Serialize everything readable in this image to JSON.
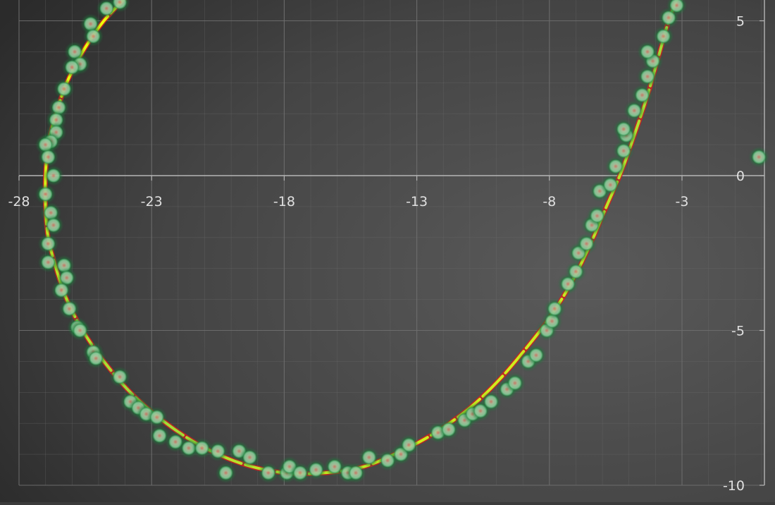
{
  "chart_data": {
    "type": "scatter",
    "title": "",
    "xlabel": "",
    "ylabel": "",
    "xlim": [
      -28,
      0
    ],
    "ylim": [
      -10,
      5.5
    ],
    "grid": true,
    "legend": "none",
    "x_ticks": [
      -28,
      -23,
      -18,
      -13,
      -8,
      -3
    ],
    "x_tick_labels": [
      "-28",
      "-23",
      "-18",
      "-13",
      "-8",
      "-3"
    ],
    "y_ticks": [
      5,
      0,
      -5,
      -10
    ],
    "y_tick_labels": [
      "5",
      "0",
      "-5",
      "-10"
    ],
    "colors": {
      "background": "#3b3b3b",
      "marker_fill": "#8fd1a0",
      "marker_edge": "#1f7a3a",
      "marker_center": "#e07b6a",
      "fit_line_under": "#d22020",
      "fit_line_gradient": [
        "#ffff00",
        "#9cd83a",
        "#ffff00"
      ],
      "grid": "#6e6e6e",
      "axis": "#b5b5b5",
      "tick_label": "#e0e0e0"
    },
    "series": [
      {
        "kind": "points",
        "points": [
          [
            -24.2,
            5.6
          ],
          [
            -24.7,
            5.4
          ],
          [
            -25.3,
            4.9
          ],
          [
            -25.2,
            4.5
          ],
          [
            -25.9,
            4.0
          ],
          [
            -25.7,
            3.6
          ],
          [
            -26.0,
            3.5
          ],
          [
            -26.3,
            2.8
          ],
          [
            -26.5,
            2.2
          ],
          [
            -26.6,
            1.8
          ],
          [
            -26.6,
            1.4
          ],
          [
            -26.8,
            1.1
          ],
          [
            -27.0,
            1.0
          ],
          [
            -26.9,
            0.6
          ],
          [
            -26.7,
            0.0
          ],
          [
            -27.0,
            -0.6
          ],
          [
            -26.8,
            -1.2
          ],
          [
            -26.7,
            -1.6
          ],
          [
            -26.9,
            -2.2
          ],
          [
            -26.9,
            -2.8
          ],
          [
            -26.3,
            -2.9
          ],
          [
            -26.2,
            -3.3
          ],
          [
            -26.4,
            -3.7
          ],
          [
            -26.1,
            -4.3
          ],
          [
            -25.8,
            -4.9
          ],
          [
            -25.7,
            -5.0
          ],
          [
            -25.2,
            -5.7
          ],
          [
            -25.1,
            -5.9
          ],
          [
            -24.2,
            -6.5
          ],
          [
            -23.8,
            -7.3
          ],
          [
            -23.5,
            -7.5
          ],
          [
            -23.2,
            -7.7
          ],
          [
            -22.8,
            -7.8
          ],
          [
            -22.7,
            -8.4
          ],
          [
            -22.1,
            -8.6
          ],
          [
            -21.6,
            -8.8
          ],
          [
            -21.1,
            -8.8
          ],
          [
            -20.5,
            -8.9
          ],
          [
            -19.7,
            -8.9
          ],
          [
            -19.3,
            -9.1
          ],
          [
            -20.2,
            -9.6
          ],
          [
            -18.6,
            -9.6
          ],
          [
            -17.9,
            -9.6
          ],
          [
            -17.8,
            -9.4
          ],
          [
            -17.4,
            -9.6
          ],
          [
            -16.8,
            -9.5
          ],
          [
            -16.1,
            -9.4
          ],
          [
            -15.6,
            -9.6
          ],
          [
            -15.3,
            -9.6
          ],
          [
            -14.8,
            -9.1
          ],
          [
            -14.1,
            -9.2
          ],
          [
            -13.6,
            -9.0
          ],
          [
            -13.3,
            -8.7
          ],
          [
            -12.2,
            -8.3
          ],
          [
            -11.8,
            -8.2
          ],
          [
            -11.2,
            -7.9
          ],
          [
            -10.9,
            -7.7
          ],
          [
            -10.6,
            -7.6
          ],
          [
            -10.2,
            -7.3
          ],
          [
            -9.6,
            -6.9
          ],
          [
            -9.3,
            -6.7
          ],
          [
            -8.8,
            -6.0
          ],
          [
            -8.5,
            -5.8
          ],
          [
            -8.1,
            -5.0
          ],
          [
            -7.9,
            -4.7
          ],
          [
            -7.8,
            -4.3
          ],
          [
            -7.3,
            -3.5
          ],
          [
            -7.0,
            -3.1
          ],
          [
            -6.9,
            -2.5
          ],
          [
            -6.6,
            -2.2
          ],
          [
            -6.4,
            -1.6
          ],
          [
            -6.2,
            -1.3
          ],
          [
            -6.1,
            -0.5
          ],
          [
            -5.7,
            -0.3
          ],
          [
            -5.5,
            0.3
          ],
          [
            -5.2,
            0.8
          ],
          [
            -5.1,
            1.3
          ],
          [
            -5.2,
            1.5
          ],
          [
            -4.8,
            2.1
          ],
          [
            -4.5,
            2.6
          ],
          [
            -4.3,
            3.2
          ],
          [
            -4.1,
            3.7
          ],
          [
            -4.3,
            4.0
          ],
          [
            -3.7,
            4.5
          ],
          [
            -3.5,
            5.1
          ],
          [
            -3.2,
            5.5
          ],
          [
            -0.1,
            0.6
          ]
        ]
      },
      {
        "kind": "fit-curve",
        "points": [
          [
            -23.8,
            5.9
          ],
          [
            -24.8,
            5.0
          ],
          [
            -25.6,
            4.0
          ],
          [
            -26.2,
            3.0
          ],
          [
            -26.6,
            2.0
          ],
          [
            -26.9,
            1.0
          ],
          [
            -27.0,
            0.0
          ],
          [
            -27.0,
            -1.0
          ],
          [
            -26.9,
            -2.0
          ],
          [
            -26.6,
            -3.0
          ],
          [
            -26.2,
            -4.0
          ],
          [
            -25.6,
            -5.0
          ],
          [
            -24.8,
            -6.0
          ],
          [
            -23.8,
            -7.0
          ],
          [
            -22.6,
            -7.9
          ],
          [
            -21.2,
            -8.7
          ],
          [
            -19.6,
            -9.3
          ],
          [
            -18.0,
            -9.6
          ],
          [
            -16.5,
            -9.6
          ],
          [
            -15.0,
            -9.4
          ],
          [
            -13.6,
            -8.9
          ],
          [
            -12.3,
            -8.3
          ],
          [
            -11.0,
            -7.5
          ],
          [
            -9.9,
            -6.6
          ],
          [
            -8.9,
            -5.6
          ],
          [
            -8.0,
            -4.6
          ],
          [
            -7.2,
            -3.5
          ],
          [
            -6.5,
            -2.3
          ],
          [
            -5.9,
            -1.1
          ],
          [
            -5.3,
            0.1
          ],
          [
            -4.8,
            1.3
          ],
          [
            -4.3,
            2.6
          ],
          [
            -3.9,
            3.8
          ],
          [
            -3.5,
            5.0
          ],
          [
            -3.1,
            5.9
          ]
        ]
      }
    ]
  }
}
